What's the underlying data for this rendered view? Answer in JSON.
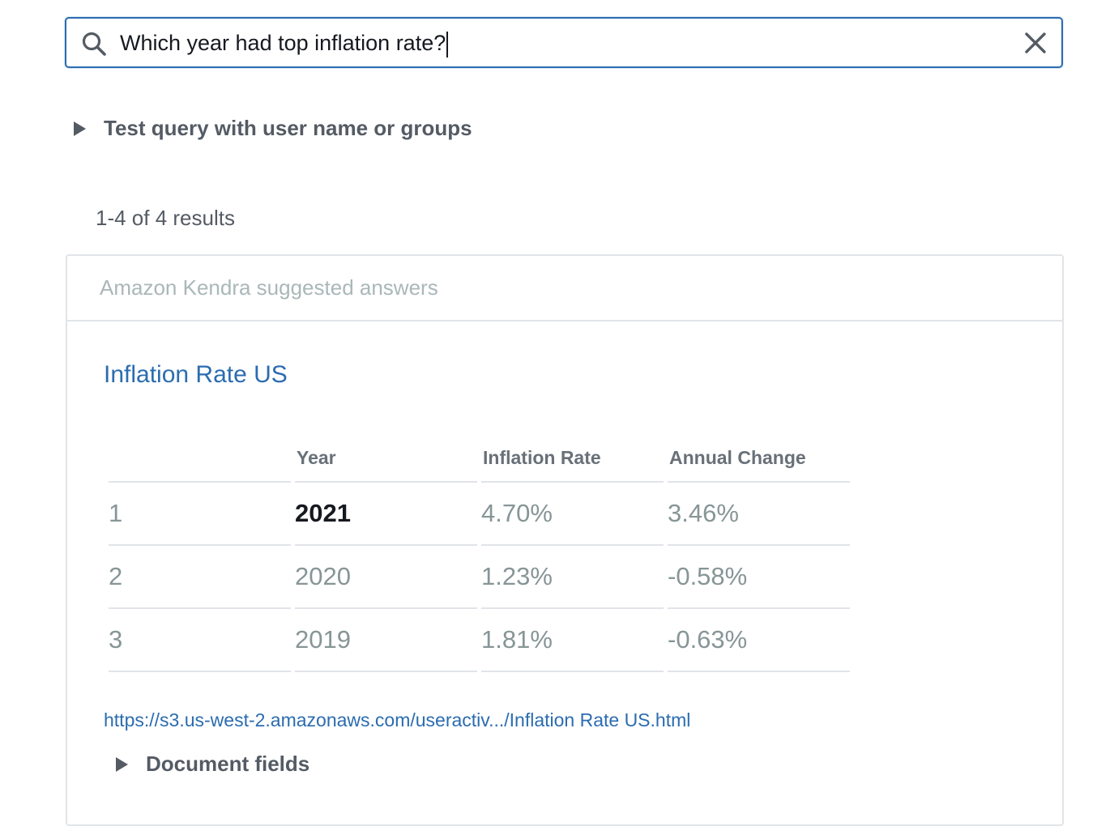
{
  "search": {
    "query": "Which year had top inflation rate?"
  },
  "test_query": {
    "label": "Test query with user name or groups"
  },
  "results": {
    "count_text": "1-4 of 4 results"
  },
  "suggested": {
    "header": "Amazon Kendra suggested answers",
    "title": "Inflation Rate US",
    "table": {
      "headers": [
        "",
        "Year",
        "Inflation Rate",
        "Annual Change"
      ],
      "rows": [
        [
          "1",
          "2021",
          "4.70%",
          "3.46%"
        ],
        [
          "2",
          "2020",
          "1.23%",
          "-0.58%"
        ],
        [
          "3",
          "2019",
          "1.81%",
          "-0.63%"
        ]
      ]
    },
    "source_url": "https://s3.us-west-2.amazonaws.com/useractiv.../Inflation Rate US.html",
    "document_fields_label": "Document fields"
  },
  "colors": {
    "accent": "#2b6cb0",
    "text": "#545b64",
    "muted": "#879596"
  }
}
